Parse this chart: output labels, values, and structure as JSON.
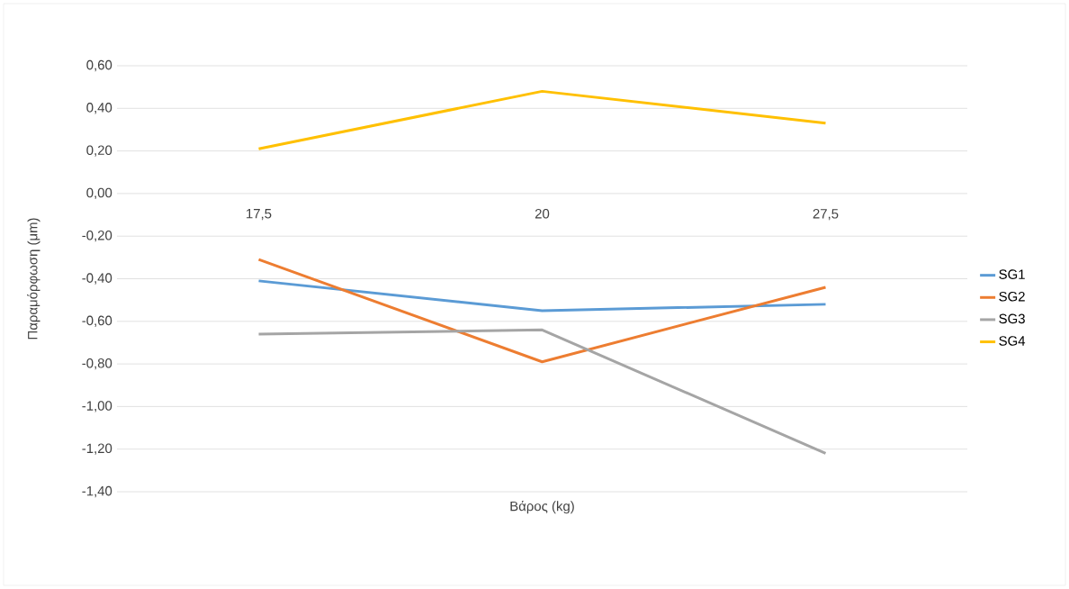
{
  "chart_data": {
    "type": "line",
    "xlabel": "Βάρος (kg)",
    "ylabel": "Παραμόρφωση (μm)",
    "categories": [
      "17,5",
      "20",
      "27,5"
    ],
    "series": [
      {
        "name": "SG1",
        "color": "#5b9bd5",
        "values": [
          -0.41,
          -0.55,
          -0.52
        ]
      },
      {
        "name": "SG2",
        "color": "#ed7d31",
        "values": [
          -0.31,
          -0.79,
          -0.44
        ]
      },
      {
        "name": "SG3",
        "color": "#a5a5a5",
        "values": [
          -0.66,
          -0.64,
          -1.22
        ]
      },
      {
        "name": "SG4",
        "color": "#ffc000",
        "values": [
          0.21,
          0.48,
          0.33
        ]
      }
    ],
    "ylim": [
      -1.4,
      0.6
    ],
    "yticks": [
      {
        "value": -1.4,
        "label": "-1,40"
      },
      {
        "value": -1.2,
        "label": "-1,20"
      },
      {
        "value": -1.0,
        "label": "-1,00"
      },
      {
        "value": -0.8,
        "label": "-0,80"
      },
      {
        "value": -0.6,
        "label": "-0,60"
      },
      {
        "value": -0.4,
        "label": "-0,40"
      },
      {
        "value": -0.2,
        "label": "-0,20"
      },
      {
        "value": 0,
        "label": "0,00"
      },
      {
        "value": 0.2,
        "label": "0,20"
      },
      {
        "value": 0.4,
        "label": "0,40"
      },
      {
        "value": 0.6,
        "label": "0,60"
      }
    ],
    "grid": "y",
    "legend": "right",
    "marker": "none",
    "line_style": "solid"
  }
}
